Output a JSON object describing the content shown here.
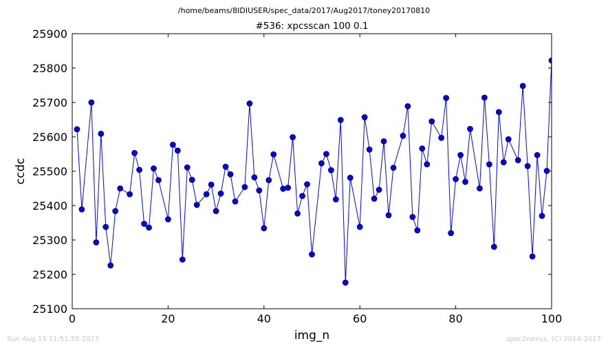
{
  "chart_data": {
    "type": "line",
    "suptitle": "/home/beams/8IDIUSER/spec_data/2017/Aug2017/toney20170810",
    "title": "#536: xpcsscan 100 0.1",
    "xlabel": "img_n",
    "ylabel": "ccdc",
    "xlim": [
      0,
      100
    ],
    "ylim": [
      25100,
      25900
    ],
    "xticks": [
      0,
      20,
      40,
      60,
      80,
      100
    ],
    "yticks": [
      25100,
      25200,
      25300,
      25400,
      25500,
      25600,
      25700,
      25800,
      25900
    ],
    "grid": false,
    "line_color": "#0000ff",
    "marker": "circle",
    "x": [
      1,
      2,
      4,
      5,
      6,
      7,
      8,
      9,
      10,
      12,
      13,
      14,
      15,
      16,
      17,
      18,
      20,
      21,
      22,
      23,
      24,
      25,
      26,
      28,
      29,
      30,
      31,
      32,
      33,
      34,
      36,
      37,
      38,
      39,
      40,
      41,
      42,
      44,
      45,
      46,
      47,
      48,
      49,
      50,
      52,
      53,
      54,
      55,
      56,
      57,
      58,
      60,
      61,
      62,
      63,
      64,
      65,
      66,
      67,
      69,
      70,
      71,
      72,
      73,
      74,
      75,
      77,
      78,
      79,
      80,
      81,
      82,
      83,
      85,
      86,
      87,
      88,
      89,
      90,
      91,
      93,
      94,
      95,
      96,
      97,
      98,
      99,
      100
    ],
    "y": [
      25622,
      25389,
      25700,
      25293,
      25609,
      25338,
      25226,
      25384,
      25450,
      25433,
      25553,
      25504,
      25347,
      25336,
      25508,
      25474,
      25360,
      25577,
      25560,
      25243,
      25511,
      25475,
      25402,
      25433,
      25461,
      25384,
      25435,
      25513,
      25491,
      25412,
      25454,
      25697,
      25482,
      25444,
      25334,
      25474,
      25549,
      25449,
      25452,
      25599,
      25377,
      25428,
      25462,
      25258,
      25523,
      25550,
      25503,
      25418,
      25649,
      25176,
      25481,
      25338,
      25657,
      25563,
      25420,
      25446,
      25587,
      25372,
      25510,
      25603,
      25689,
      25367,
      25328,
      25566,
      25520,
      25645,
      25597,
      25713,
      25320,
      25477,
      25547,
      25469,
      25623,
      25450,
      25714,
      25520,
      25280,
      25672,
      25526,
      25593,
      25532,
      25748,
      25515,
      25252,
      25547,
      25370,
      25501,
      25822
    ]
  },
  "footer": {
    "left": "Sun Aug 13 11:51:55 2017",
    "right": "spec2nexus, (C) 2014-2017"
  }
}
